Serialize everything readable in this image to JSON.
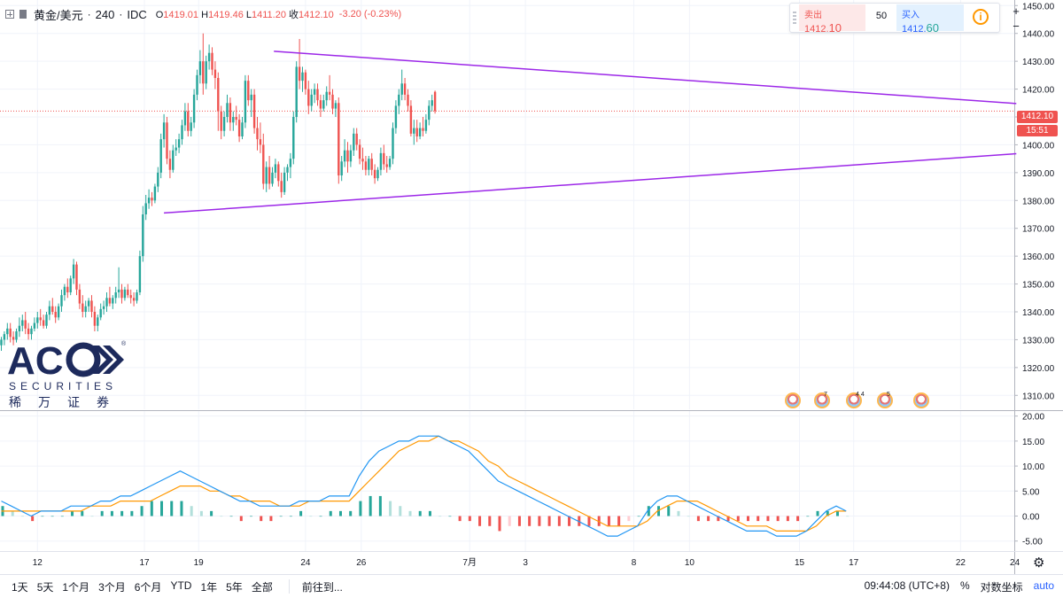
{
  "header": {
    "symbol": "黄金/美元",
    "sep": "·",
    "interval": "240",
    "source": "IDC",
    "open_label": "O",
    "open": "1419.01",
    "high_label": "H",
    "high": "1419.46",
    "low_label": "L",
    "low": "1411.20",
    "close_label": "收",
    "close": "1412.10",
    "change": "-3.20 (-0.23%)"
  },
  "trade_panel": {
    "sell_label": "卖出",
    "sell_price_main": "1412.",
    "sell_price_tail": "10",
    "spread": "50",
    "buy_label": "买入",
    "buy_price_main": "1412.",
    "buy_price_tail": "60",
    "info_icon": "info-icon"
  },
  "zoom": {
    "plus": "+",
    "minus": "−"
  },
  "logo": {
    "word": "AC",
    "tagline": "SECURITIES",
    "cn": "稀万证券",
    "reg": "®"
  },
  "price_tag": "1412.10",
  "time_tag": "15:51",
  "events": [
    {
      "x": 895,
      "count": ""
    },
    {
      "x": 928,
      "count": "7"
    },
    {
      "x": 964,
      "count": "4 4"
    },
    {
      "x": 999,
      "count": "5"
    },
    {
      "x": 1040,
      "count": ""
    }
  ],
  "bottom": {
    "ranges": [
      "1天",
      "5天",
      "1个月",
      "3个月",
      "6个月",
      "YTD",
      "1年",
      "5年",
      "全部"
    ],
    "goto": "前往到...",
    "time": "09:44:08 (UTC+8)",
    "percent": "%",
    "log": "对数坐标",
    "auto": "auto"
  },
  "colors": {
    "up": "#26a69a",
    "down": "#ef5350",
    "trend": "#9c27e8",
    "macd": "#2196f3",
    "signal": "#ff9800"
  },
  "chart_data": [
    {
      "type": "candlestick",
      "title": "黄金/美元 · 240 · IDC",
      "ylim": [
        1305,
        1452
      ],
      "y_ticks": [
        1310,
        1320,
        1330,
        1340,
        1350,
        1360,
        1370,
        1380,
        1390,
        1400,
        1410,
        1420,
        1430,
        1440,
        1450
      ],
      "x_tick_labels": [
        {
          "label": "12",
          "t": 12
        },
        {
          "label": "17",
          "t": 47.5
        },
        {
          "label": "19",
          "t": 65.5
        },
        {
          "label": "24",
          "t": 101
        },
        {
          "label": "26",
          "t": 119.5
        },
        {
          "label": "7月",
          "t": 155.5
        },
        {
          "label": "3",
          "t": 174
        },
        {
          "label": "8",
          "t": 210
        },
        {
          "label": "10",
          "t": 228.5
        },
        {
          "label": "15",
          "t": 265
        },
        {
          "label": "17",
          "t": 283
        },
        {
          "label": "22",
          "t": 318.5
        },
        {
          "label": "24",
          "t": 336.5
        }
      ],
      "ohlc": [
        [
          1328,
          1331,
          1326,
          1330
        ],
        [
          1330,
          1333,
          1328,
          1332
        ],
        [
          1332,
          1336,
          1330,
          1334
        ],
        [
          1334,
          1336,
          1329,
          1331
        ],
        [
          1331,
          1333,
          1328,
          1330
        ],
        [
          1330,
          1334,
          1329,
          1333
        ],
        [
          1333,
          1338,
          1331,
          1335
        ],
        [
          1335,
          1339,
          1333,
          1337
        ],
        [
          1337,
          1340,
          1332,
          1334
        ],
        [
          1334,
          1336,
          1330,
          1332
        ],
        [
          1332,
          1335,
          1330,
          1334
        ],
        [
          1334,
          1338,
          1333,
          1336
        ],
        [
          1336,
          1340,
          1334,
          1338
        ],
        [
          1338,
          1341,
          1335,
          1337
        ],
        [
          1337,
          1339,
          1334,
          1335
        ],
        [
          1335,
          1340,
          1334,
          1339
        ],
        [
          1339,
          1344,
          1337,
          1342
        ],
        [
          1342,
          1345,
          1339,
          1340
        ],
        [
          1340,
          1342,
          1336,
          1338
        ],
        [
          1338,
          1343,
          1337,
          1342
        ],
        [
          1342,
          1348,
          1340,
          1346
        ],
        [
          1346,
          1350,
          1344,
          1349
        ],
        [
          1349,
          1352,
          1345,
          1347
        ],
        [
          1347,
          1353,
          1346,
          1352
        ],
        [
          1352,
          1359,
          1350,
          1357
        ],
        [
          1357,
          1358,
          1346,
          1348
        ],
        [
          1348,
          1350,
          1341,
          1343
        ],
        [
          1343,
          1346,
          1338,
          1340
        ],
        [
          1340,
          1344,
          1338,
          1342
        ],
        [
          1342,
          1345,
          1340,
          1344
        ],
        [
          1344,
          1346,
          1338,
          1340
        ],
        [
          1340,
          1342,
          1333,
          1335
        ],
        [
          1335,
          1339,
          1333,
          1338
        ],
        [
          1338,
          1343,
          1337,
          1341
        ],
        [
          1341,
          1344,
          1339,
          1342
        ],
        [
          1342,
          1347,
          1340,
          1345
        ],
        [
          1345,
          1349,
          1342,
          1343
        ],
        [
          1343,
          1346,
          1341,
          1345
        ],
        [
          1345,
          1349,
          1343,
          1347
        ],
        [
          1347,
          1356,
          1345,
          1348
        ],
        [
          1348,
          1350,
          1343,
          1345
        ],
        [
          1345,
          1349,
          1344,
          1348
        ],
        [
          1348,
          1350,
          1345,
          1346
        ],
        [
          1346,
          1348,
          1343,
          1345
        ],
        [
          1345,
          1347,
          1342,
          1344
        ],
        [
          1344,
          1348,
          1343,
          1347
        ],
        [
          1347,
          1362,
          1346,
          1360
        ],
        [
          1360,
          1378,
          1358,
          1375
        ],
        [
          1375,
          1382,
          1373,
          1379
        ],
        [
          1379,
          1384,
          1377,
          1381
        ],
        [
          1381,
          1383,
          1378,
          1380
        ],
        [
          1380,
          1386,
          1379,
          1385
        ],
        [
          1385,
          1392,
          1383,
          1390
        ],
        [
          1390,
          1404,
          1388,
          1402
        ],
        [
          1402,
          1411,
          1399,
          1408
        ],
        [
          1408,
          1410,
          1393,
          1395
        ],
        [
          1395,
          1398,
          1388,
          1391
        ],
        [
          1391,
          1400,
          1390,
          1398
        ],
        [
          1398,
          1402,
          1396,
          1399
        ],
        [
          1399,
          1404,
          1397,
          1402
        ],
        [
          1402,
          1409,
          1400,
          1407
        ],
        [
          1407,
          1415,
          1405,
          1412
        ],
        [
          1412,
          1415,
          1403,
          1405
        ],
        [
          1405,
          1410,
          1403,
          1408
        ],
        [
          1408,
          1420,
          1406,
          1418
        ],
        [
          1418,
          1427,
          1416,
          1425
        ],
        [
          1425,
          1434,
          1422,
          1430
        ],
        [
          1430,
          1440,
          1418,
          1422
        ],
        [
          1422,
          1432,
          1420,
          1430
        ],
        [
          1430,
          1436,
          1427,
          1433
        ],
        [
          1433,
          1435,
          1425,
          1427
        ],
        [
          1427,
          1430,
          1420,
          1424
        ],
        [
          1424,
          1426,
          1405,
          1412
        ],
        [
          1412,
          1414,
          1402,
          1405
        ],
        [
          1405,
          1412,
          1403,
          1410
        ],
        [
          1410,
          1418,
          1408,
          1415
        ],
        [
          1415,
          1417,
          1405,
          1408
        ],
        [
          1408,
          1412,
          1405,
          1410
        ],
        [
          1410,
          1414,
          1407,
          1409
        ],
        [
          1409,
          1411,
          1401,
          1403
        ],
        [
          1403,
          1410,
          1402,
          1408
        ],
        [
          1408,
          1425,
          1406,
          1423
        ],
        [
          1423,
          1425,
          1414,
          1416
        ],
        [
          1416,
          1420,
          1410,
          1418
        ],
        [
          1418,
          1420,
          1404,
          1406
        ],
        [
          1406,
          1410,
          1398,
          1402
        ],
        [
          1402,
          1408,
          1397,
          1400
        ],
        [
          1400,
          1404,
          1384,
          1386
        ],
        [
          1386,
          1394,
          1383,
          1392
        ],
        [
          1392,
          1396,
          1384,
          1386
        ],
        [
          1386,
          1392,
          1385,
          1390
        ],
        [
          1390,
          1395,
          1388,
          1393
        ],
        [
          1393,
          1394,
          1385,
          1387
        ],
        [
          1387,
          1390,
          1381,
          1383
        ],
        [
          1383,
          1392,
          1382,
          1390
        ],
        [
          1390,
          1393,
          1387,
          1392
        ],
        [
          1392,
          1397,
          1388,
          1395
        ],
        [
          1395,
          1412,
          1393,
          1410
        ],
        [
          1410,
          1430,
          1408,
          1428
        ],
        [
          1428,
          1438,
          1420,
          1423
        ],
        [
          1423,
          1428,
          1419,
          1426
        ],
        [
          1426,
          1427,
          1418,
          1420
        ],
        [
          1420,
          1423,
          1411,
          1414
        ],
        [
          1414,
          1420,
          1412,
          1418
        ],
        [
          1418,
          1422,
          1415,
          1420
        ],
        [
          1420,
          1422,
          1414,
          1416
        ],
        [
          1416,
          1418,
          1410,
          1413
        ],
        [
          1413,
          1418,
          1412,
          1416
        ],
        [
          1416,
          1421,
          1414,
          1419
        ],
        [
          1419,
          1425,
          1416,
          1418
        ],
        [
          1418,
          1420,
          1411,
          1413
        ],
        [
          1413,
          1416,
          1410,
          1415
        ],
        [
          1415,
          1417,
          1386,
          1389
        ],
        [
          1389,
          1396,
          1387,
          1394
        ],
        [
          1394,
          1402,
          1392,
          1398
        ],
        [
          1398,
          1401,
          1390,
          1394
        ],
        [
          1394,
          1400,
          1392,
          1398
        ],
        [
          1398,
          1406,
          1396,
          1404
        ],
        [
          1404,
          1406,
          1398,
          1400
        ],
        [
          1400,
          1402,
          1393,
          1395
        ],
        [
          1395,
          1399,
          1391,
          1394
        ],
        [
          1394,
          1396,
          1389,
          1391
        ],
        [
          1391,
          1396,
          1389,
          1395
        ],
        [
          1395,
          1397,
          1389,
          1391
        ],
        [
          1391,
          1393,
          1386,
          1388
        ],
        [
          1388,
          1392,
          1387,
          1391
        ],
        [
          1391,
          1399,
          1389,
          1397
        ],
        [
          1397,
          1400,
          1391,
          1393
        ],
        [
          1393,
          1396,
          1390,
          1392
        ],
        [
          1392,
          1396,
          1391,
          1395
        ],
        [
          1395,
          1408,
          1393,
          1406
        ],
        [
          1406,
          1416,
          1404,
          1414
        ],
        [
          1414,
          1420,
          1411,
          1418
        ],
        [
          1418,
          1427,
          1416,
          1422
        ],
        [
          1422,
          1424,
          1416,
          1418
        ],
        [
          1418,
          1420,
          1412,
          1414
        ],
        [
          1414,
          1416,
          1403,
          1404
        ],
        [
          1404,
          1409,
          1400,
          1406
        ],
        [
          1406,
          1409,
          1401,
          1403
        ],
        [
          1403,
          1408,
          1402,
          1406
        ],
        [
          1406,
          1410,
          1403,
          1405
        ],
        [
          1405,
          1411,
          1404,
          1409
        ],
        [
          1409,
          1416,
          1407,
          1414
        ],
        [
          1414,
          1418,
          1412,
          1416
        ],
        [
          1419.01,
          1419.46,
          1411.2,
          1412.1
        ]
      ],
      "trendlines": [
        {
          "name": "upper",
          "from": {
            "t": 90.5,
            "price": 1433.6
          },
          "to": {
            "t": 337,
            "price": 1414.8
          }
        },
        {
          "name": "lower",
          "from": {
            "t": 54,
            "price": 1375.5
          },
          "to": {
            "t": 337,
            "price": 1396.8
          }
        }
      ],
      "last_price": 1412.1
    },
    {
      "type": "line+bar",
      "title": "MACD",
      "ylim": [
        -7,
        21
      ],
      "y_ticks": [
        -5,
        0,
        5,
        10,
        15,
        20
      ],
      "y_tick_labels": [
        "-5.00",
        "0.00",
        "5.00",
        "10.00",
        "15.00",
        "20.00"
      ],
      "macd": [
        3,
        2,
        1,
        0,
        1,
        1,
        1,
        2,
        2,
        2,
        3,
        3,
        4,
        4,
        5,
        6,
        7,
        8,
        9,
        8,
        7,
        6,
        5,
        4,
        3,
        3,
        2,
        2,
        2,
        2,
        3,
        3,
        3,
        4,
        4,
        4,
        8,
        11,
        13,
        14,
        15,
        15,
        16,
        16,
        16,
        15,
        14,
        13,
        11,
        9,
        7,
        6,
        5,
        4,
        3,
        2,
        1,
        0,
        -1,
        -2,
        -3,
        -4,
        -4,
        -3,
        -2,
        1,
        3,
        4,
        4,
        3,
        2,
        1,
        0,
        -1,
        -2,
        -3,
        -3,
        -3,
        -4,
        -4,
        -4,
        -3,
        -1,
        1,
        2,
        1
      ],
      "signal": [
        1,
        1,
        1,
        1,
        1,
        1,
        1,
        1,
        1,
        2,
        2,
        2,
        3,
        3,
        3,
        3,
        4,
        5,
        6,
        6,
        6,
        5,
        5,
        4,
        4,
        3,
        3,
        3,
        2,
        2,
        2,
        3,
        3,
        3,
        3,
        3,
        5,
        7,
        9,
        11,
        13,
        14,
        15,
        15,
        16,
        15,
        15,
        14,
        13,
        11,
        10,
        8,
        7,
        6,
        5,
        4,
        3,
        2,
        1,
        0,
        -1,
        -2,
        -2,
        -2,
        -2,
        -1,
        1,
        2,
        3,
        3,
        3,
        2,
        1,
        0,
        -1,
        -2,
        -2,
        -2,
        -3,
        -3,
        -3,
        -3,
        -2,
        0,
        1,
        1
      ],
      "histogram": [
        2,
        1,
        0,
        -1,
        0,
        0,
        0,
        1,
        1,
        0,
        1,
        1,
        1,
        1,
        2,
        3,
        3,
        3,
        3,
        2,
        1,
        1,
        0,
        0,
        -1,
        0,
        -1,
        -1,
        0,
        0,
        1,
        0,
        0,
        1,
        1,
        1,
        3,
        4,
        4,
        3,
        2,
        1,
        1,
        1,
        0,
        0,
        -1,
        -1,
        -2,
        -2,
        -3,
        -2,
        -2,
        -2,
        -2,
        -2,
        -2,
        -2,
        -2,
        -2,
        -2,
        -2,
        -2,
        -1,
        0,
        2,
        2,
        2,
        1,
        0,
        -1,
        -1,
        -1,
        -1,
        -1,
        -1,
        -1,
        -1,
        -1,
        -1,
        -1,
        0,
        1,
        1,
        1,
        0
      ]
    }
  ]
}
